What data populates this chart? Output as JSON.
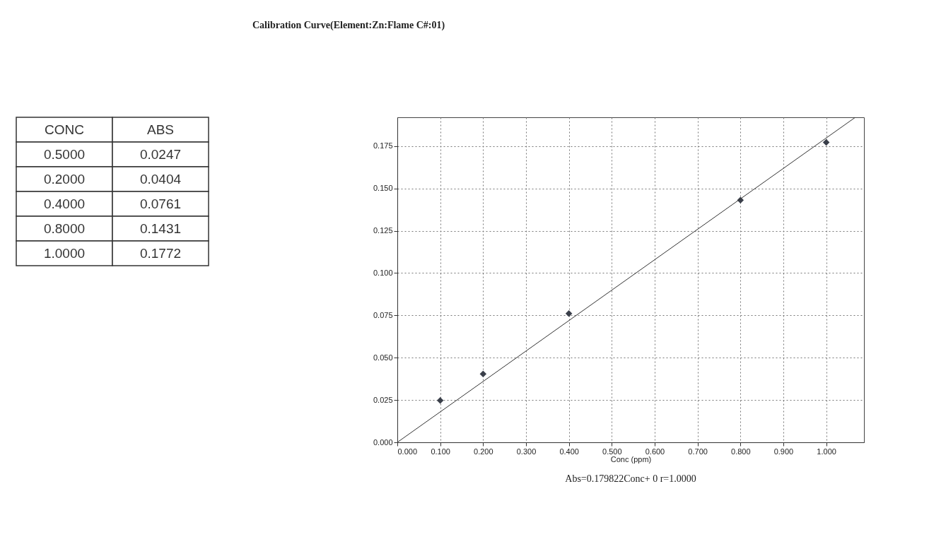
{
  "chart_data": [
    {
      "type": "other",
      "categories": [
        "CONC",
        "ABS"
      ],
      "annotations": [
        "0.5000",
        "0.0247",
        "0.2000",
        "0.0404",
        "0.4000",
        "0.0761",
        "0.8000",
        "0.1431",
        "1.0000",
        "0.1772"
      ]
    },
    {
      "type": "scatter",
      "title": "Calibration Curve(Element:Zn:Flame  C#:01)",
      "xlabel": "Conc (ppm)",
      "annotations": [
        "Abs=0.179822Conc+   0      r=1.0000"
      ],
      "xlim": [
        0,
        1.088
      ],
      "ylim": [
        0,
        0.192
      ],
      "xticks": [
        {
          "value": 0,
          "label": "0.000"
        },
        {
          "value": 0.1,
          "label": "0.100"
        },
        {
          "value": 0.2,
          "label": "0.200"
        },
        {
          "value": 0.3,
          "label": "0.300"
        },
        {
          "value": 0.4,
          "label": "0.400"
        },
        {
          "value": 0.5,
          "label": "0.500"
        },
        {
          "value": 0.6,
          "label": "0.600"
        },
        {
          "value": 0.7,
          "label": "0.700"
        },
        {
          "value": 0.8,
          "label": "0.800"
        },
        {
          "value": 0.9,
          "label": "0.900"
        },
        {
          "value": 1,
          "label": "1.000"
        }
      ],
      "yticks": [
        {
          "value": 0,
          "label": "0.000"
        },
        {
          "value": 0.025,
          "label": "0.025"
        },
        {
          "value": 0.05,
          "label": "0.050"
        },
        {
          "value": 0.075,
          "label": "0.075"
        },
        {
          "value": 0.1,
          "label": "0.100"
        },
        {
          "value": 0.125,
          "label": "0.125"
        },
        {
          "value": 0.15,
          "label": "0.150"
        },
        {
          "value": 0.175,
          "label": "0.175"
        }
      ],
      "grid": true,
      "series": [
        {
          "type": "scatter",
          "marker": "diamond",
          "color": "#3a3f4a",
          "x": [
            0.1,
            0.2,
            0.4,
            0.8,
            1.0
          ],
          "values": [
            0.0247,
            0.0404,
            0.0761,
            0.1431,
            0.1772
          ]
        },
        {
          "type": "line",
          "marker": "none",
          "color": "#333333",
          "x": [
            0,
            1.068
          ],
          "values": [
            0,
            0.192
          ]
        }
      ]
    }
  ]
}
